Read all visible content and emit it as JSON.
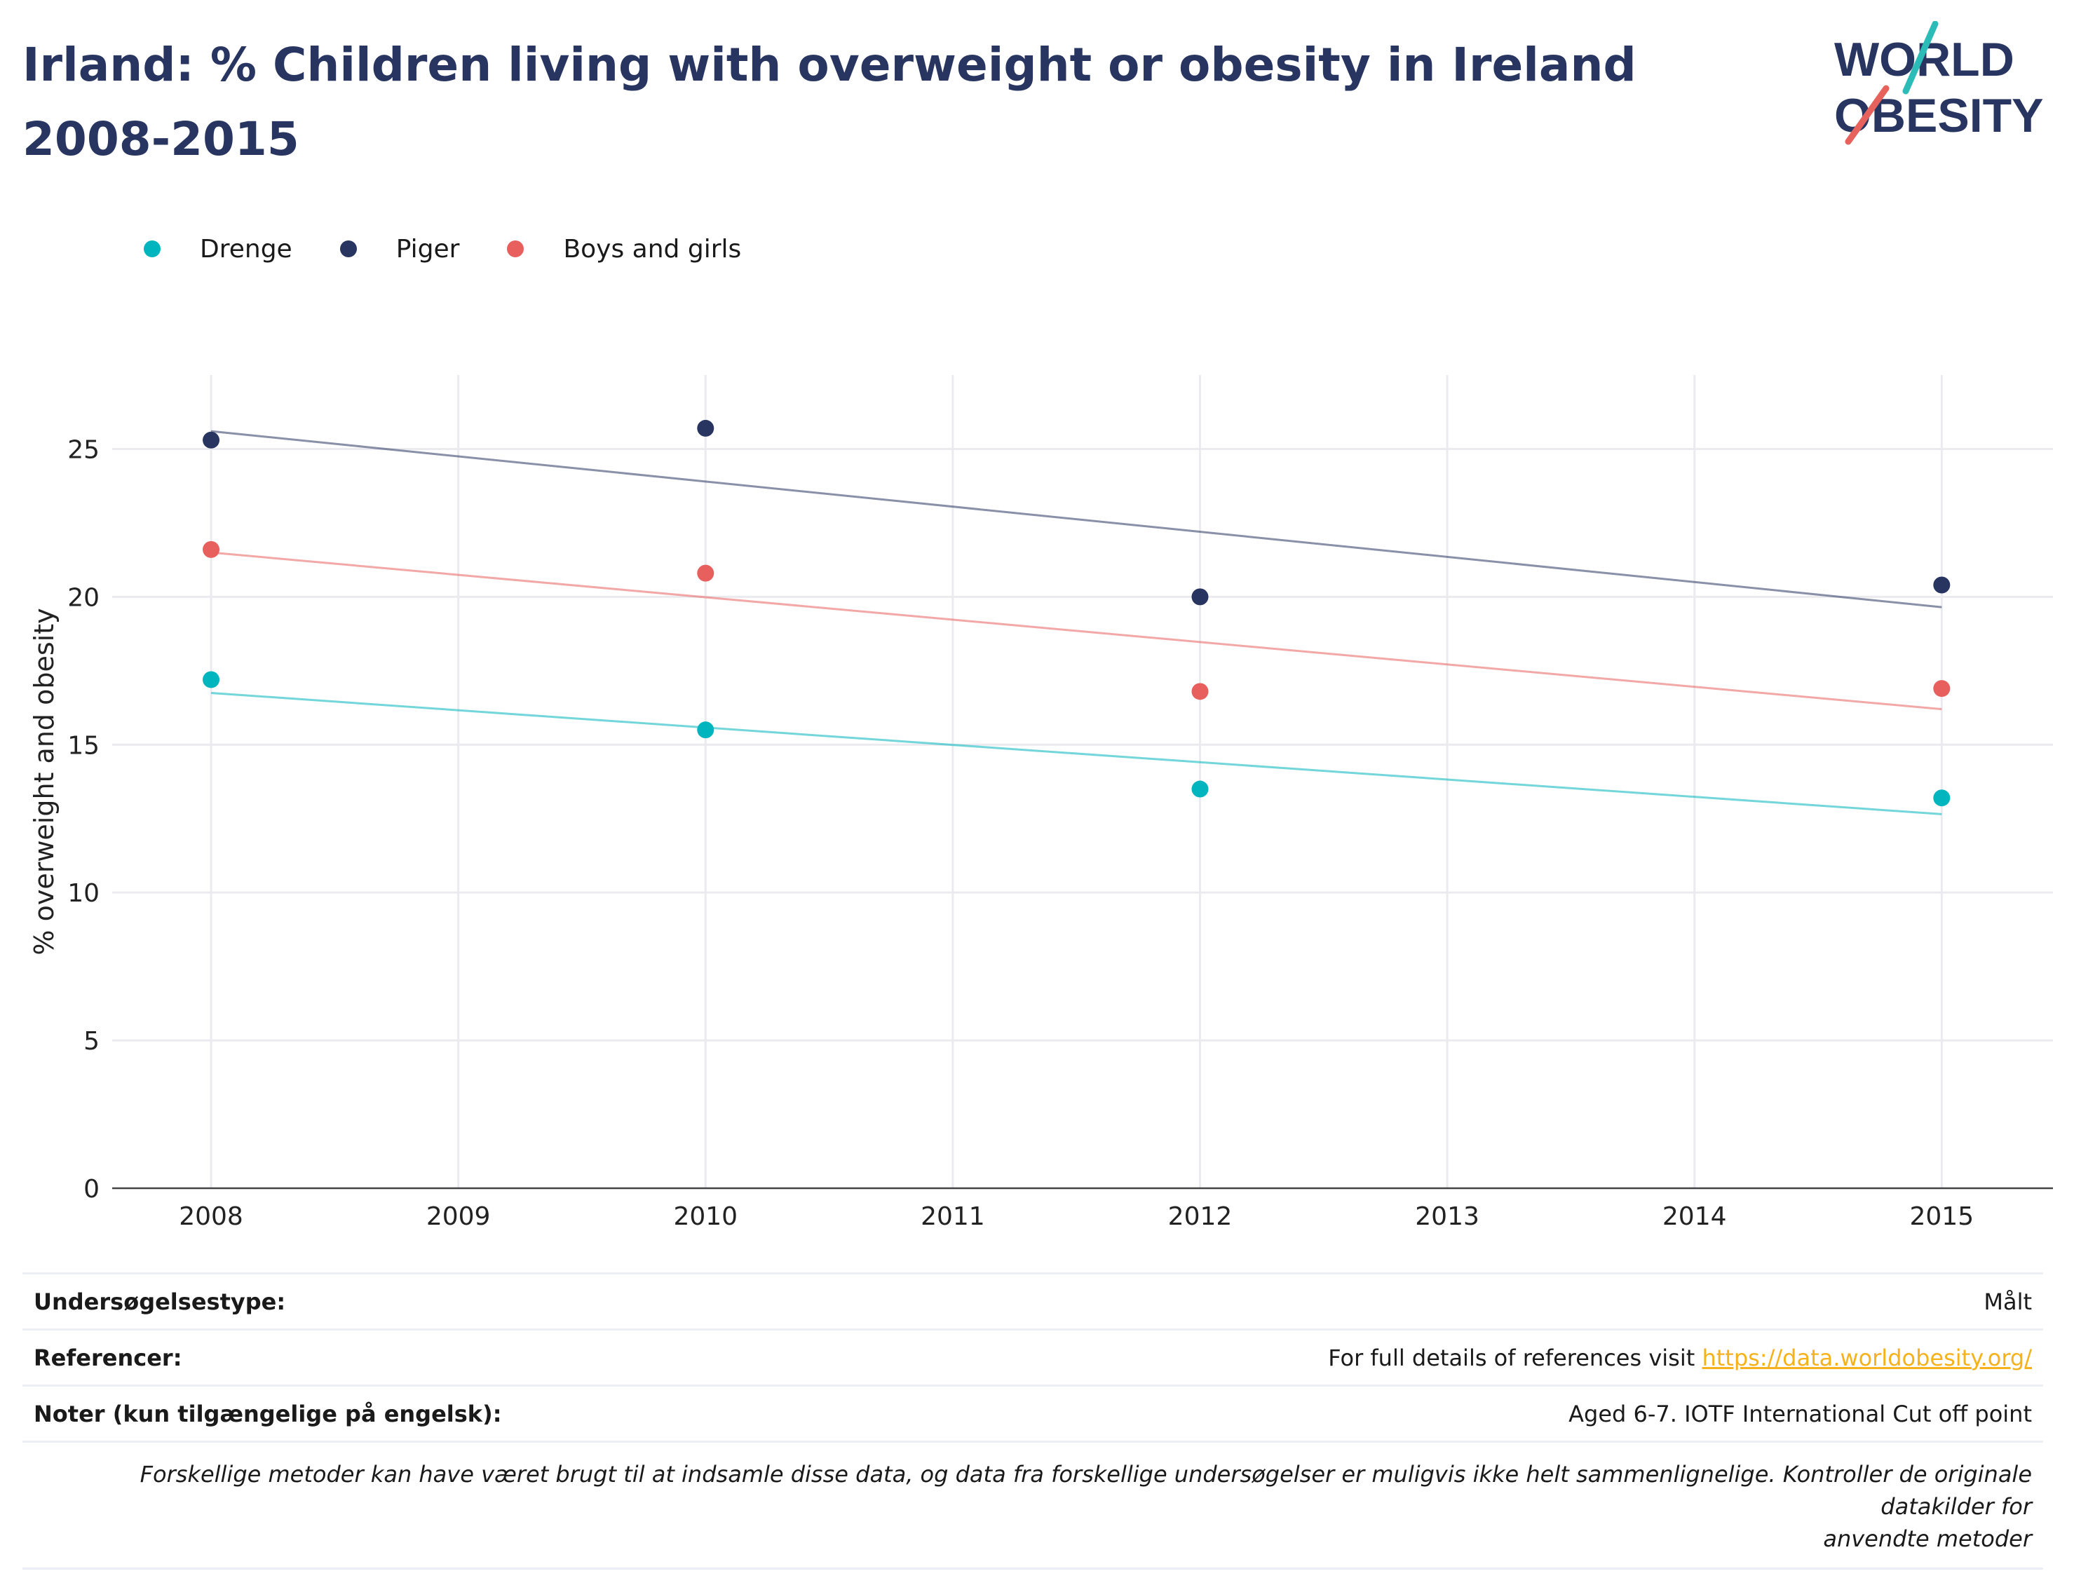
{
  "title": "Irland: % Children living with overweight or obesity in Ireland 2008-2015",
  "logo": {
    "line1": "WORLD",
    "line2": "OBESITY",
    "colors": {
      "navy": "#283561",
      "teal": "#2bbcb8",
      "coral": "#e8625d"
    }
  },
  "chart_data": {
    "type": "scatter",
    "x": [
      2008,
      2010,
      2012,
      2015
    ],
    "series": [
      {
        "name": "Drenge",
        "color": "#00b5bd",
        "values": [
          17.2,
          15.5,
          13.5,
          13.2
        ],
        "trend": [
          16.75,
          12.65
        ]
      },
      {
        "name": "Piger",
        "color": "#283561",
        "values": [
          25.3,
          25.7,
          20.0,
          20.4
        ],
        "trend": [
          25.6,
          19.65
        ]
      },
      {
        "name": "Boys and girls",
        "color": "#e8605e",
        "values": [
          21.6,
          20.8,
          16.8,
          16.9
        ],
        "trend": [
          21.5,
          16.2
        ]
      }
    ],
    "xlabel": "",
    "ylabel": "% overweight and obesity",
    "xlim": [
      2007.6,
      2015.45
    ],
    "ylim": [
      0,
      27.5
    ],
    "xticks": [
      2008,
      2009,
      2010,
      2011,
      2012,
      2013,
      2014,
      2015
    ],
    "yticks": [
      0,
      5,
      10,
      15,
      20,
      25
    ],
    "grid": true,
    "legend": "top-left"
  },
  "footer": {
    "survey_type_label": "Undersøgelsestype:",
    "survey_type_value": "Målt",
    "references_label": "Referencer:",
    "references_text": "For full details of references visit ",
    "references_link": "https://data.worldobesity.org/",
    "notes_label": "Noter (kun tilgængelige på engelsk):",
    "notes_value": "Aged 6-7. IOTF International Cut off point",
    "disclaimer_line1": "Forskellige metoder kan have været brugt til at indsamle disse data, og data fra forskellige undersøgelser er muligvis ikke helt sammenlignelige. Kontroller de originale datakilder for",
    "disclaimer_line2": "anvendte metoder"
  }
}
